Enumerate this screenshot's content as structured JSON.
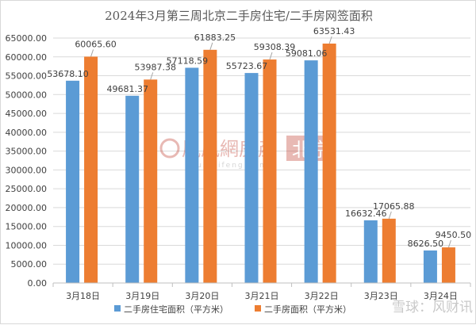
{
  "chart_data": {
    "type": "bar",
    "title": "2024年3月第三周北京二手房住宅/二手房网签面积",
    "categories": [
      "3月18日",
      "3月19日",
      "3月20日",
      "3月21日",
      "3月22日",
      "3月23日",
      "3月24日"
    ],
    "series": [
      {
        "name": "二手房住宅面积（平方米）",
        "color": "#5b9bd5",
        "values": [
          53678.1,
          49681.37,
          57118.59,
          55723.67,
          59081.06,
          16632.46,
          8626.5
        ],
        "labels": [
          "53678.10",
          "49681.37",
          "57118.59",
          "55723.67",
          "59081.06",
          "16632.46",
          "8626.50"
        ]
      },
      {
        "name": "二手房面积（平方米）",
        "color": "#ed7d31",
        "values": [
          60065.6,
          53987.38,
          61883.25,
          59308.39,
          63531.43,
          17065.88,
          9450.5
        ],
        "labels": [
          "60065.60",
          "53987.38",
          "61883.25",
          "59308.39",
          "63531.43",
          "17065.88",
          "9450.50"
        ]
      }
    ],
    "ylim": [
      0,
      65000
    ],
    "yticks": [
      "0.00",
      "5000.00",
      "10000.00",
      "15000.00",
      "20000.00",
      "25000.00",
      "30000.00",
      "35000.00",
      "40000.00",
      "45000.00",
      "50000.00",
      "55000.00",
      "60000.00",
      "65000.00"
    ],
    "grid": true,
    "legend_position": "bottom"
  },
  "watermarks": {
    "center": "鳳凰網房產",
    "center_city": "北京",
    "center_url": "house.ifeng.com",
    "corner": "雪球：风财讯"
  }
}
